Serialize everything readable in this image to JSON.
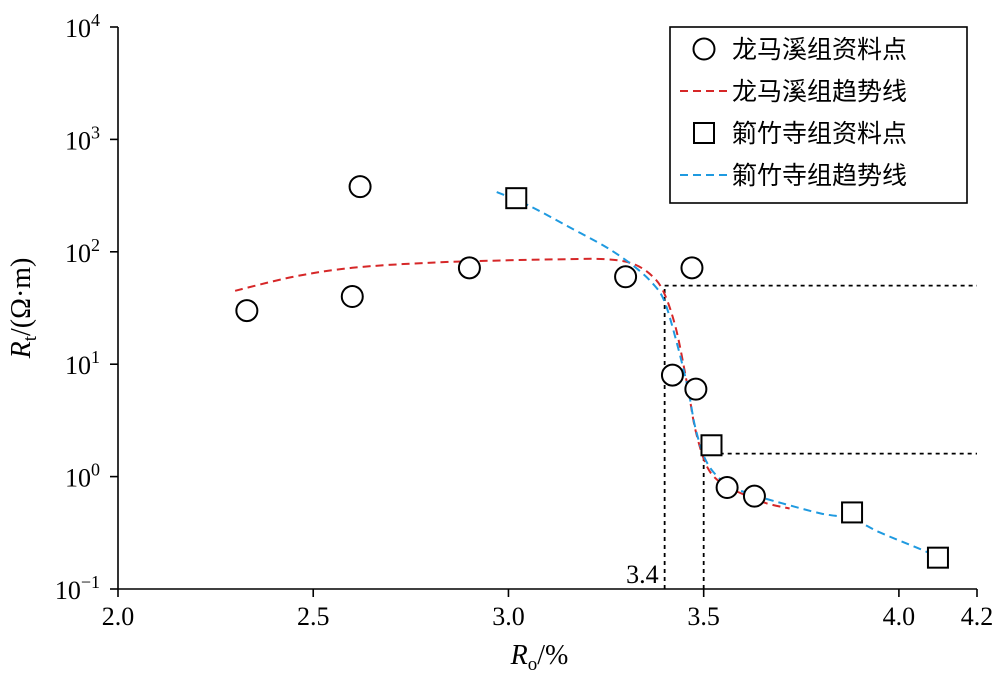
{
  "chart_data": {
    "type": "scatter",
    "y_scale": "log",
    "xlim": [
      2.0,
      4.2
    ],
    "ylim": [
      0.1,
      10000
    ],
    "x_ticks": [
      "2.0",
      "2.5",
      "3.0",
      "3.5",
      "4.0",
      "4.2"
    ],
    "x_tick_values": [
      2.0,
      2.5,
      3.0,
      3.5,
      4.0,
      4.2
    ],
    "y_ticks": [
      {
        "value": 10000,
        "base": "10",
        "exp": "4"
      },
      {
        "value": 1000,
        "base": "10",
        "exp": "3"
      },
      {
        "value": 100,
        "base": "10",
        "exp": "2"
      },
      {
        "value": 10,
        "base": "10",
        "exp": "1"
      },
      {
        "value": 1,
        "base": "10",
        "exp": "0"
      },
      {
        "value": 0.1,
        "base": "10",
        "exp": "−1"
      }
    ],
    "xlabel": {
      "main": "R",
      "sub": "o",
      "rest": "/%"
    },
    "ylabel": {
      "main": "R",
      "sub": "t",
      "rest": "/(Ω·m)"
    },
    "grid": false,
    "legend_position": "top-right",
    "series": [
      {
        "name": "龙马溪组资料点",
        "kind": "points",
        "marker": "circle",
        "color": "#000000",
        "points": [
          [
            2.33,
            30
          ],
          [
            2.6,
            40
          ],
          [
            2.62,
            380
          ],
          [
            2.9,
            72
          ],
          [
            3.3,
            60
          ],
          [
            3.42,
            8
          ],
          [
            3.47,
            72
          ],
          [
            3.48,
            6
          ],
          [
            3.56,
            0.8
          ],
          [
            3.63,
            0.67
          ]
        ]
      },
      {
        "name": "龙马溪组趋势线",
        "kind": "line",
        "color": "#d62728",
        "points": [
          [
            2.3,
            45
          ],
          [
            2.45,
            60
          ],
          [
            2.6,
            72
          ],
          [
            2.8,
            80
          ],
          [
            3.0,
            84
          ],
          [
            3.15,
            86
          ],
          [
            3.25,
            86
          ],
          [
            3.32,
            78
          ],
          [
            3.37,
            60
          ],
          [
            3.4,
            42
          ],
          [
            3.43,
            20
          ],
          [
            3.46,
            6
          ],
          [
            3.48,
            2.5
          ],
          [
            3.51,
            1.2
          ],
          [
            3.55,
            0.85
          ],
          [
            3.6,
            0.7
          ],
          [
            3.66,
            0.58
          ],
          [
            3.72,
            0.52
          ]
        ]
      },
      {
        "name": "箣竹寺组资料点",
        "kind": "points",
        "marker": "square",
        "color": "#000000",
        "points": [
          [
            3.02,
            300
          ],
          [
            3.52,
            1.9
          ],
          [
            3.88,
            0.48
          ],
          [
            4.1,
            0.19
          ]
        ]
      },
      {
        "name": "箣竹寺组趋势线",
        "kind": "line",
        "color": "#1f9ae0",
        "points": [
          [
            2.97,
            340
          ],
          [
            3.05,
            260
          ],
          [
            3.15,
            170
          ],
          [
            3.25,
            110
          ],
          [
            3.32,
            75
          ],
          [
            3.37,
            52
          ],
          [
            3.4,
            36
          ],
          [
            3.43,
            16
          ],
          [
            3.46,
            6
          ],
          [
            3.48,
            2.6
          ],
          [
            3.51,
            1.3
          ],
          [
            3.56,
            0.85
          ],
          [
            3.62,
            0.7
          ],
          [
            3.7,
            0.58
          ],
          [
            3.8,
            0.47
          ],
          [
            3.88,
            0.42
          ],
          [
            3.95,
            0.32
          ],
          [
            4.05,
            0.23
          ],
          [
            4.12,
            0.18
          ]
        ]
      }
    ],
    "reference_lines": [
      {
        "x": 3.4,
        "y": 50
      },
      {
        "x": 3.5,
        "y": 1.6
      }
    ],
    "annotations": [
      {
        "text": "3.4",
        "x": 3.4,
        "y": 0.1
      }
    ]
  }
}
